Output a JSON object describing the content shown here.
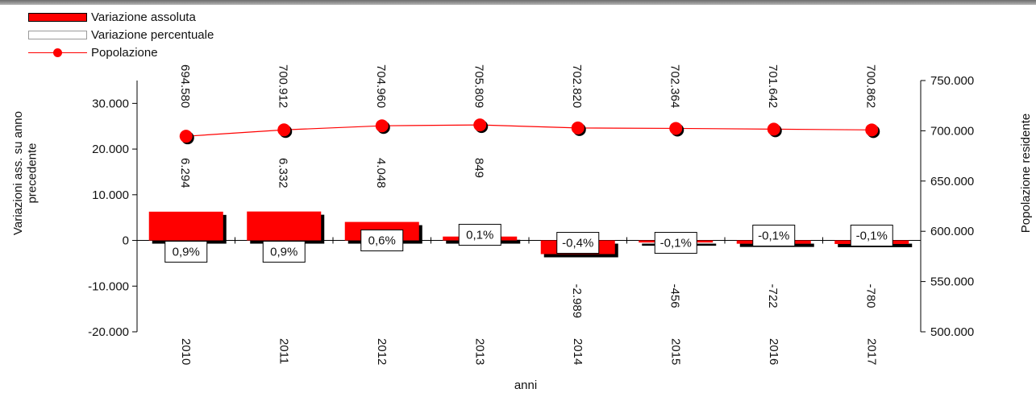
{
  "legend": {
    "abs_label": "Variazione assoluta",
    "pct_label": "Variazione percentuale",
    "pop_label": "Popolazione"
  },
  "colors": {
    "bar": "#ff0000",
    "line": "#ff0000",
    "shadow": "#000000"
  },
  "chart_data": {
    "type": "bar",
    "categories": [
      "2010",
      "2011",
      "2012",
      "2013",
      "2014",
      "2015",
      "2016",
      "2017"
    ],
    "series": [
      {
        "name": "Variazione assoluta",
        "values": [
          6294,
          6332,
          4048,
          849,
          -2989,
          -456,
          -722,
          -780
        ],
        "labels": [
          "6.294",
          "6.332",
          "4.048",
          "849",
          "-2.989",
          "-456",
          "-722",
          "-780"
        ]
      },
      {
        "name": "Variazione percentuale",
        "labels": [
          "0,9%",
          "0,9%",
          "0,6%",
          "0,1%",
          "-0,4%",
          "-0,1%",
          "-0,1%",
          "-0,1%"
        ]
      },
      {
        "name": "Popolazione",
        "type": "line",
        "values": [
          694580,
          700912,
          704960,
          705809,
          702820,
          702364,
          701642,
          700862
        ],
        "labels": [
          "694.580",
          "700.912",
          "704.960",
          "705.809",
          "702.820",
          "702.364",
          "701.642",
          "700.862"
        ]
      }
    ],
    "xlabel": "anni",
    "ylabel_left": "Variazioni ass. su anno precedente",
    "ylabel_right": "Popolazione residente",
    "ylim_left": [
      -20000,
      35000
    ],
    "ylim_right": [
      500000,
      750000
    ],
    "yticks_left": [
      "30.000",
      "20.000",
      "10.000",
      "0",
      "-10.000",
      "-20.000"
    ],
    "ytick_values_left": [
      30000,
      20000,
      10000,
      0,
      -10000,
      -20000
    ],
    "yticks_right": [
      "750.000",
      "700.000",
      "650.000",
      "600.000",
      "550.000",
      "500.000"
    ],
    "ytick_values_right": [
      750000,
      700000,
      650000,
      600000,
      550000,
      500000
    ],
    "grid": false,
    "legend_position": "top-left"
  }
}
